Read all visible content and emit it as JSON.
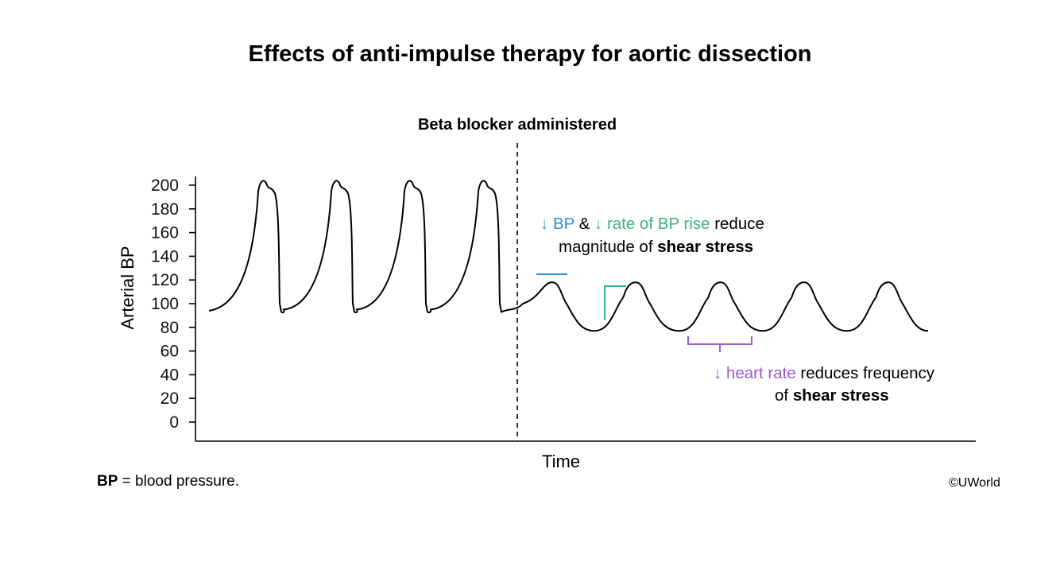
{
  "chart_data": {
    "type": "line",
    "title": "Effects of anti-impulse therapy for aortic dissection",
    "xlabel": "Time",
    "ylabel": "Arterial BP",
    "ylim": [
      0,
      200
    ],
    "yticks": [
      0,
      20,
      40,
      60,
      80,
      100,
      120,
      140,
      160,
      180,
      200
    ],
    "grid": false,
    "series": [
      {
        "before_beta_blocker": {
          "peak": 206,
          "trough": 93,
          "beats": 4,
          "description_of_shape": "steep upstroke"
        },
        "after_beta_blocker": {
          "peak": 118,
          "trough": 77,
          "beats": 5
        }
      }
    ],
    "annotations": {
      "event_marker": "Beta blocker administered",
      "bp_arrow": "↓ BP",
      "amp": "&",
      "rate_arrow": "↓ rate of BP rise",
      "reduce": "reduce",
      "magnitude_line": "magnitude of",
      "shear_stress": "shear stress",
      "hr_arrow": "↓ heart rate",
      "reduces_frequency": "reduces frequency",
      "of_word": "of",
      "shear_stress_2": "shear stress"
    },
    "colors": {
      "bp": "#2b8fd6",
      "rate": "#3cb37a",
      "heart_rate": "#9b59c9",
      "line": "#000000"
    }
  },
  "footnote": {
    "bold": "BP",
    "text": " = blood pressure."
  },
  "copyright": "©UWorld"
}
